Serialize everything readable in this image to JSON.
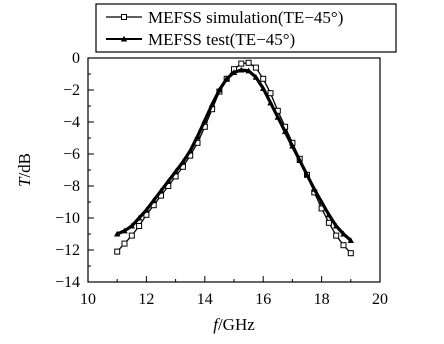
{
  "chart_data": {
    "type": "line",
    "xlabel": {
      "italic": "f",
      "rest": "/GHz"
    },
    "ylabel": {
      "italic": "T",
      "rest": "/dB"
    },
    "xlim": [
      10,
      20
    ],
    "ylim": [
      -14,
      0
    ],
    "x_ticks": [
      "10",
      "12",
      "14",
      "16",
      "18",
      "20"
    ],
    "y_ticks": [
      "0",
      "−2",
      "−4",
      "−6",
      "−8",
      "−10",
      "−12",
      "−14"
    ],
    "legend_position": "top",
    "series": [
      {
        "name": "MEFSS simulation(TE−45°)",
        "marker": "square",
        "x": [
          11.0,
          11.25,
          11.5,
          11.75,
          12.0,
          12.25,
          12.5,
          12.75,
          13.0,
          13.25,
          13.5,
          13.75,
          14.0,
          14.25,
          14.5,
          14.75,
          15.0,
          15.25,
          15.5,
          15.75,
          16.0,
          16.25,
          16.5,
          16.75,
          17.0,
          17.25,
          17.5,
          17.75,
          18.0,
          18.25,
          18.5,
          18.75,
          19.0
        ],
        "y": [
          -12.1,
          -11.6,
          -11.1,
          -10.5,
          -9.8,
          -9.2,
          -8.6,
          -8.0,
          -7.4,
          -6.8,
          -6.1,
          -5.3,
          -4.3,
          -3.2,
          -2.1,
          -1.3,
          -0.7,
          -0.35,
          -0.3,
          -0.6,
          -1.3,
          -2.2,
          -3.3,
          -4.3,
          -5.3,
          -6.3,
          -7.3,
          -8.4,
          -9.4,
          -10.3,
          -11.1,
          -11.7,
          -12.2
        ]
      },
      {
        "name": "MEFSS test(TE−45°)",
        "marker": "triangle",
        "x": [
          11.0,
          11.25,
          11.5,
          11.75,
          12.0,
          12.25,
          12.5,
          12.75,
          13.0,
          13.25,
          13.5,
          13.75,
          14.0,
          14.25,
          14.5,
          14.75,
          15.0,
          15.25,
          15.5,
          15.75,
          16.0,
          16.25,
          16.5,
          16.75,
          17.0,
          17.25,
          17.5,
          17.75,
          18.0,
          18.25,
          18.5,
          18.75,
          19.0
        ],
        "y": [
          -11.0,
          -10.8,
          -10.5,
          -10.0,
          -9.5,
          -8.9,
          -8.3,
          -7.7,
          -7.1,
          -6.5,
          -5.8,
          -4.9,
          -3.9,
          -2.9,
          -2.0,
          -1.3,
          -0.9,
          -0.75,
          -0.8,
          -1.2,
          -1.9,
          -2.8,
          -3.7,
          -4.6,
          -5.5,
          -6.4,
          -7.3,
          -8.2,
          -9.0,
          -9.8,
          -10.5,
          -11.0,
          -11.4
        ]
      }
    ]
  }
}
